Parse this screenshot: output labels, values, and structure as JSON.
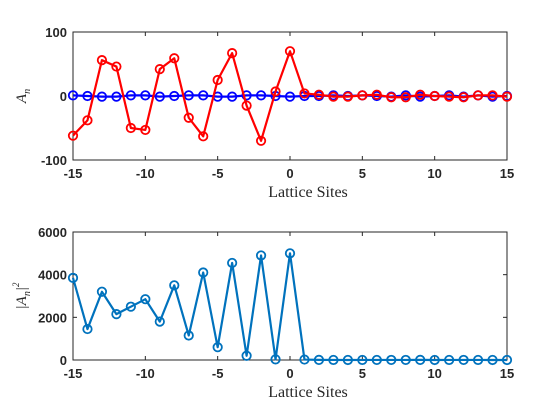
{
  "chart_data": [
    {
      "type": "line",
      "xlabel": "Lattice Sites",
      "ylabel": "A",
      "ylabel_sub": "n",
      "xlim": [
        -15,
        15
      ],
      "ylim": [
        -100,
        100
      ],
      "xticks": [
        -15,
        -10,
        -5,
        0,
        5,
        10,
        15
      ],
      "yticks": [
        -100,
        0,
        100
      ],
      "grid": false,
      "x": [
        -15,
        -14,
        -13,
        -12,
        -11,
        -10,
        -9,
        -8,
        -7,
        -6,
        -5,
        -4,
        -3,
        -2,
        -1,
        0,
        1,
        2,
        3,
        4,
        5,
        6,
        7,
        8,
        9,
        10,
        11,
        12,
        13,
        14,
        15
      ],
      "series": [
        {
          "color": "#0000ff",
          "marker": "circle",
          "values": [
            1,
            0,
            -1,
            -1,
            1,
            1,
            -1,
            0,
            1,
            1,
            -1,
            -1,
            1,
            1,
            0,
            -1,
            0,
            0,
            1,
            0,
            1,
            0,
            -1,
            1,
            -1,
            0,
            1,
            -1,
            1,
            -1,
            0
          ]
        },
        {
          "color": "#ff0000",
          "marker": "circle",
          "values": [
            -62,
            -38,
            56,
            46,
            -50,
            -53,
            42,
            59,
            -34,
            -63,
            25,
            67,
            -15,
            -70,
            7,
            70,
            4,
            2,
            -1,
            -1,
            1,
            2,
            -2,
            -2,
            2,
            0,
            -1,
            -2,
            1,
            1,
            -1
          ]
        }
      ]
    },
    {
      "type": "line",
      "xlabel": "Lattice Sites",
      "ylabel": "|A",
      "ylabel_sub": "n",
      "ylabel_end": "|",
      "ylabel_sup": "2",
      "xlim": [
        -15,
        15
      ],
      "ylim": [
        0,
        6000
      ],
      "xticks": [
        -15,
        -10,
        -5,
        0,
        5,
        10,
        15
      ],
      "yticks": [
        0,
        2000,
        4000,
        6000
      ],
      "grid": false,
      "x": [
        -15,
        -14,
        -13,
        -12,
        -11,
        -10,
        -9,
        -8,
        -7,
        -6,
        -5,
        -4,
        -3,
        -2,
        -1,
        0,
        1,
        2,
        3,
        4,
        5,
        6,
        7,
        8,
        9,
        10,
        11,
        12,
        13,
        14,
        15
      ],
      "series": [
        {
          "color": "#0072bd",
          "marker": "circle",
          "values": [
            3850,
            1450,
            3200,
            2150,
            2500,
            2850,
            1800,
            3500,
            1150,
            4100,
            600,
            4550,
            200,
            4900,
            30,
            5000,
            20,
            5,
            2,
            1,
            2,
            3,
            4,
            4,
            5,
            1,
            2,
            4,
            2,
            1,
            1
          ]
        }
      ]
    }
  ]
}
